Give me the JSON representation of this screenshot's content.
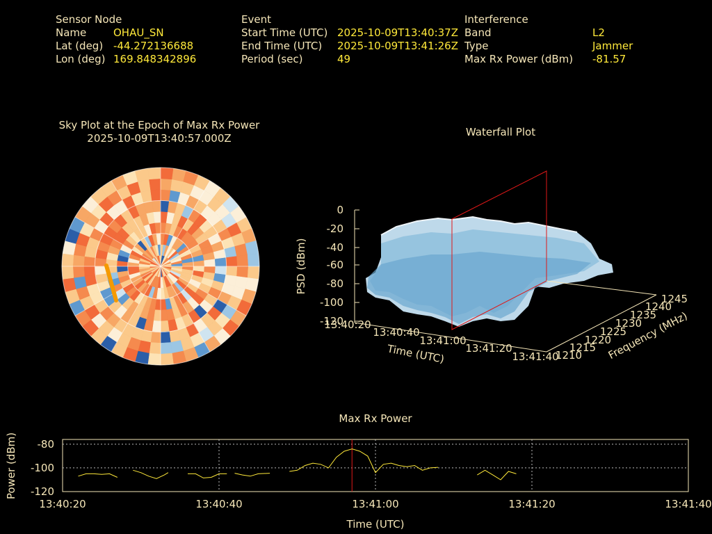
{
  "sensor_node": {
    "header": "Sensor Node",
    "name_label": "Name",
    "name": "OHAU_SN",
    "lat_label": "Lat (deg)",
    "lat": "-44.272136688",
    "lon_label": "Lon (deg)",
    "lon": "169.848342896"
  },
  "event": {
    "header": "Event",
    "start_label": "Start Time (UTC)",
    "start": "2025-10-09T13:40:37Z",
    "end_label": "End Time (UTC)",
    "end": "2025-10-09T13:41:26Z",
    "period_label": "Period (sec)",
    "period": "49"
  },
  "interference": {
    "header": "Interference",
    "band_label": "Band",
    "band": "L2",
    "type_label": "Type",
    "type": "Jammer",
    "maxrx_label": "Max Rx Power (dBm)",
    "maxrx": "-81.57"
  },
  "sky_plot": {
    "title": "Sky Plot at the Epoch of Max Rx Power",
    "epoch": "2025-10-09T13:40:57.000Z"
  },
  "waterfall": {
    "title": "Waterfall Plot",
    "zlabel": "PSD (dBm)",
    "xlabel": "Time (UTC)",
    "ylabel": "Frequency (MHz)",
    "z_ticks": [
      "0",
      "-20",
      "-40",
      "-60",
      "-80",
      "-100",
      "-120"
    ],
    "time_ticks": [
      "13:40:20",
      "13:40:40",
      "13:41:00",
      "13:41:20",
      "13:41:40"
    ],
    "freq_ticks": [
      "1210",
      "1215",
      "1220",
      "1225",
      "1230",
      "1235",
      "1240",
      "1245"
    ]
  },
  "chart_data": {
    "type": "line",
    "title": "Max Rx Power",
    "xlabel": "Time (UTC)",
    "ylabel": "Power (dBm)",
    "x_ticks": [
      "13:40:20",
      "13:40:40",
      "13:41:00",
      "13:41:20",
      "13:41:40"
    ],
    "y_ticks": [
      "-80",
      "-100",
      "-120"
    ],
    "ylim": [
      -120,
      -76
    ],
    "xlim_sec": [
      0,
      80
    ],
    "marker_sec": 37,
    "series": [
      {
        "name": "Max Rx Power",
        "segments": [
          [
            [
              2,
              -107
            ],
            [
              3,
              -105
            ],
            [
              4,
              -105
            ],
            [
              5,
              -105.5
            ],
            [
              6,
              -105
            ],
            [
              7,
              -108
            ]
          ],
          [
            [
              9,
              -102
            ],
            [
              10,
              -104
            ],
            [
              11,
              -107
            ],
            [
              12,
              -109
            ],
            [
              13,
              -106
            ],
            [
              13.5,
              -104
            ]
          ],
          [
            [
              16,
              -105
            ],
            [
              17,
              -105
            ],
            [
              18,
              -108.5
            ],
            [
              19,
              -108
            ],
            [
              20,
              -105
            ],
            [
              21,
              -105
            ]
          ],
          [
            [
              22,
              -104.5
            ],
            [
              23,
              -106
            ],
            [
              24,
              -107
            ],
            [
              25,
              -105
            ],
            [
              26.5,
              -104.5
            ]
          ],
          [
            [
              29,
              -103
            ],
            [
              30,
              -102
            ],
            [
              31,
              -98
            ],
            [
              32,
              -96
            ],
            [
              33,
              -97
            ],
            [
              34,
              -100
            ],
            [
              35,
              -91
            ],
            [
              36,
              -86
            ],
            [
              37,
              -84
            ],
            [
              38,
              -86
            ],
            [
              39,
              -90
            ],
            [
              40,
              -104
            ],
            [
              41,
              -97
            ],
            [
              42,
              -96
            ],
            [
              43,
              -98
            ],
            [
              44,
              -99
            ],
            [
              45,
              -98
            ],
            [
              46,
              -102
            ],
            [
              47,
              -100
            ],
            [
              48,
              -99.5
            ]
          ],
          [
            [
              53,
              -106
            ],
            [
              54,
              -102
            ],
            [
              55,
              -106
            ],
            [
              56,
              -110
            ],
            [
              57,
              -103
            ],
            [
              58,
              -105
            ]
          ]
        ]
      }
    ]
  }
}
